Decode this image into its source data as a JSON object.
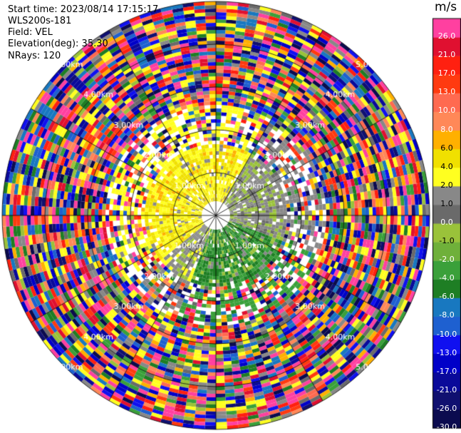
{
  "header": {
    "start_time": "Start time: 2023/08/14 17:15:17",
    "instrument": "WLS200s-181",
    "field": "Field: VEL",
    "elevation": "Elevation(deg): 35.30",
    "nrays": "NRays: 120"
  },
  "chart_data": {
    "type": "heatmap",
    "subtype": "polar-ppi",
    "field": "VEL",
    "units": "m/s",
    "nrays": 120,
    "max_range_km": 5.0,
    "range_rings_km": [
      1.0,
      2.0,
      3.0,
      4.0,
      5.0
    ],
    "ring_labels": [
      "1.00km",
      "2.00km",
      "3.00km",
      "4.00km",
      "5.00km"
    ],
    "spokes_deg": [
      0,
      30,
      60,
      90,
      120,
      150,
      180,
      210,
      240,
      270,
      300,
      330
    ],
    "description_values": {
      "inner_northwest": "2.0 to 4.0",
      "inner_northeast": "0.0 to -2.0",
      "inner_south": "-2.0 to -8.0",
      "outer": "noise -30.0 to 26.0"
    },
    "colorbar": {
      "levels": [
        "-30.0",
        "-26.0",
        "-21.0",
        "-17.0",
        "-13.0",
        "-10.0",
        "-8.0",
        "-6.0",
        "-4.0",
        "-2.0",
        "-1.0",
        "0.0",
        "1.0",
        "2.0",
        "4.0",
        "6.0",
        "8.0",
        "10.0",
        "13.0",
        "17.0",
        "21.0",
        "26.0"
      ],
      "colors": [
        "#0b0b4f",
        "#101070",
        "#0a0a9a",
        "#0000c8",
        "#1010f0",
        "#1e60d0",
        "#1878c0",
        "#1e7e24",
        "#3aa03a",
        "#6fb03a",
        "#9ac23a",
        "#6a6a6a",
        "#888888",
        "#ffff20",
        "#f0e000",
        "#ffb000",
        "#ff8858",
        "#ff6a50",
        "#ff3a10",
        "#ff2010",
        "#e01030",
        "#ff40a0"
      ]
    }
  }
}
